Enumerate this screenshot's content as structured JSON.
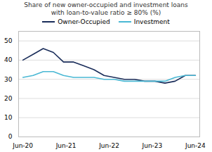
{
  "chart_data": {
    "type": "line",
    "title": "Share of new owner-occupied and investment loans\nwith loan-to-value ratio ≥ 80% (%)",
    "x": [
      0,
      0.23529411764705882,
      0.47058823529411764,
      0.7058823529411765,
      0.9411764705882353,
      1.1764705882352942,
      1.411764705882353,
      1.6470588235294117,
      1.8823529411764706,
      2.1176470588235294,
      2.3529411764705883,
      2.588235294117647,
      2.823529411764706,
      3.0588235294117645,
      3.2941176470588234,
      3.5294117647058822,
      3.764705882352941,
      4
    ],
    "xlim": [
      -0.1,
      4.1
    ],
    "xticks": [
      {
        "value": 0,
        "label": "Jun-20"
      },
      {
        "value": 1,
        "label": "Jun-21"
      },
      {
        "value": 2,
        "label": "Jun-22"
      },
      {
        "value": 3,
        "label": "Jun-23"
      },
      {
        "value": 4,
        "label": "Jun-24"
      }
    ],
    "ylim": [
      0,
      55
    ],
    "yticks": [
      0,
      10,
      20,
      30,
      40,
      50
    ],
    "series": [
      {
        "name": "Owner-Occupied",
        "color": "#1a2d5a",
        "values": [
          40,
          43,
          46,
          44,
          39,
          39,
          37,
          35,
          32,
          31,
          30,
          30,
          29,
          29,
          28,
          29,
          32,
          32
        ]
      },
      {
        "name": "Investment",
        "color": "#4ab8d4",
        "values": [
          31,
          32,
          34,
          34,
          32,
          31,
          31,
          31,
          30,
          30,
          29,
          29,
          29,
          29,
          29,
          31,
          32,
          32
        ]
      }
    ],
    "grid": true,
    "legend": "top"
  }
}
